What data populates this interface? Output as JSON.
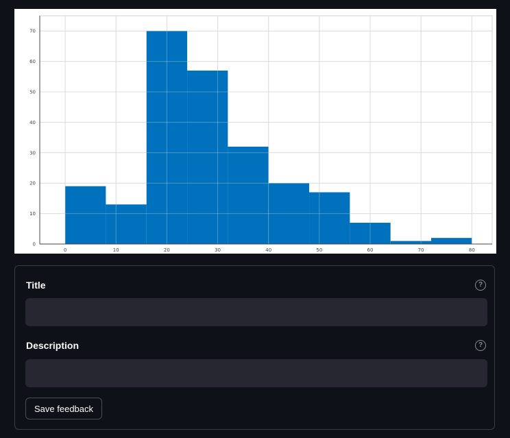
{
  "chart_data": {
    "type": "bar",
    "bins": [
      {
        "x0": 0.0,
        "x1": 8.0,
        "count": 19
      },
      {
        "x0": 8.0,
        "x1": 16.0,
        "count": 13
      },
      {
        "x0": 16.0,
        "x1": 24.0,
        "count": 70
      },
      {
        "x0": 24.0,
        "x1": 32.0,
        "count": 57
      },
      {
        "x0": 32.0,
        "x1": 40.0,
        "count": 32
      },
      {
        "x0": 40.0,
        "x1": 48.0,
        "count": 20
      },
      {
        "x0": 48.0,
        "x1": 56.0,
        "count": 17
      },
      {
        "x0": 56.0,
        "x1": 64.0,
        "count": 7
      },
      {
        "x0": 64.0,
        "x1": 72.0,
        "count": 1
      },
      {
        "x0": 72.0,
        "x1": 80.0,
        "count": 2
      }
    ],
    "xticks": [
      "0",
      "10",
      "20",
      "30",
      "40",
      "50",
      "60",
      "70",
      "80"
    ],
    "yticks": [
      "0",
      "10",
      "20",
      "30",
      "40",
      "50",
      "60",
      "70"
    ],
    "xlim": [
      -5,
      84
    ],
    "ylim": [
      0,
      75
    ],
    "grid": true,
    "bar_color": "#0072bd"
  },
  "form": {
    "title_label": "Title",
    "title_value": "",
    "description_label": "Description",
    "description_value": "",
    "help_icon": "?",
    "save_label": "Save feedback"
  },
  "colors": {
    "background": "#0e1117",
    "input_bg": "#262730",
    "text": "#fafafa"
  }
}
